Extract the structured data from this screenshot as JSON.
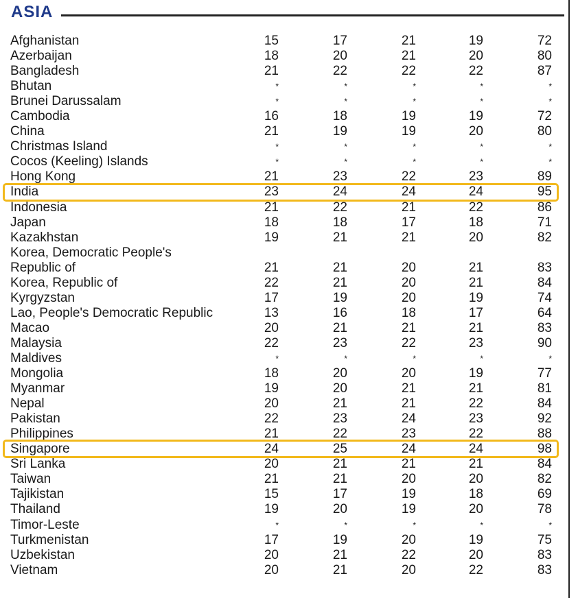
{
  "section_title": "ASIA",
  "highlight_color": "#f2b91c",
  "title_color": "#1f3a8a",
  "rows": [
    {
      "name": "Afghanistan",
      "v1": "15",
      "v2": "17",
      "v3": "21",
      "v4": "19",
      "v5": "72"
    },
    {
      "name": "Azerbaijan",
      "v1": "18",
      "v2": "20",
      "v3": "21",
      "v4": "20",
      "v5": "80"
    },
    {
      "name": "Bangladesh",
      "v1": "21",
      "v2": "22",
      "v3": "22",
      "v4": "22",
      "v5": "87"
    },
    {
      "name": "Bhutan",
      "v1": "*",
      "v2": "*",
      "v3": "*",
      "v4": "*",
      "v5": "*"
    },
    {
      "name": "Brunei Darussalam",
      "v1": "*",
      "v2": "*",
      "v3": "*",
      "v4": "*",
      "v5": "*"
    },
    {
      "name": "Cambodia",
      "v1": "16",
      "v2": "18",
      "v3": "19",
      "v4": "19",
      "v5": "72"
    },
    {
      "name": "China",
      "v1": "21",
      "v2": "19",
      "v3": "19",
      "v4": "20",
      "v5": "80"
    },
    {
      "name": "Christmas Island",
      "v1": "*",
      "v2": "*",
      "v3": "*",
      "v4": "*",
      "v5": "*"
    },
    {
      "name": "Cocos (Keeling) Islands",
      "v1": "*",
      "v2": "*",
      "v3": "*",
      "v4": "*",
      "v5": "*"
    },
    {
      "name": "Hong Kong",
      "v1": "21",
      "v2": "23",
      "v3": "22",
      "v4": "23",
      "v5": "89"
    },
    {
      "name": "India",
      "v1": "23",
      "v2": "24",
      "v3": "24",
      "v4": "24",
      "v5": "95"
    },
    {
      "name": "Indonesia",
      "v1": "21",
      "v2": "22",
      "v3": "21",
      "v4": "22",
      "v5": "86"
    },
    {
      "name": "Japan",
      "v1": "18",
      "v2": "18",
      "v3": "17",
      "v4": "18",
      "v5": "71"
    },
    {
      "name": "Kazakhstan",
      "v1": "19",
      "v2": "21",
      "v3": "21",
      "v4": "20",
      "v5": "82"
    },
    {
      "name": "Korea, Democratic People's",
      "v1": "",
      "v2": "",
      "v3": "",
      "v4": "",
      "v5": ""
    },
    {
      "name": "Republic of",
      "v1": "21",
      "v2": "21",
      "v3": "20",
      "v4": "21",
      "v5": "83"
    },
    {
      "name": "Korea, Republic of",
      "v1": "22",
      "v2": "21",
      "v3": "20",
      "v4": "21",
      "v5": "84"
    },
    {
      "name": "Kyrgyzstan",
      "v1": "17",
      "v2": "19",
      "v3": "20",
      "v4": "19",
      "v5": "74"
    },
    {
      "name": "Lao, People's Democratic Republic",
      "v1": "13",
      "v2": "16",
      "v3": "18",
      "v4": "17",
      "v5": "64"
    },
    {
      "name": "Macao",
      "v1": "20",
      "v2": "21",
      "v3": "21",
      "v4": "21",
      "v5": "83"
    },
    {
      "name": "Malaysia",
      "v1": "22",
      "v2": "23",
      "v3": "22",
      "v4": "23",
      "v5": "90"
    },
    {
      "name": "Maldives",
      "v1": "*",
      "v2": "*",
      "v3": "*",
      "v4": "*",
      "v5": "*"
    },
    {
      "name": "Mongolia",
      "v1": "18",
      "v2": "20",
      "v3": "20",
      "v4": "19",
      "v5": "77"
    },
    {
      "name": "Myanmar",
      "v1": "19",
      "v2": "20",
      "v3": "21",
      "v4": "21",
      "v5": "81"
    },
    {
      "name": "Nepal",
      "v1": "20",
      "v2": "21",
      "v3": "21",
      "v4": "22",
      "v5": "84"
    },
    {
      "name": "Pakistan",
      "v1": "22",
      "v2": "23",
      "v3": "24",
      "v4": "23",
      "v5": "92"
    },
    {
      "name": "Philippines",
      "v1": "21",
      "v2": "22",
      "v3": "23",
      "v4": "22",
      "v5": "88"
    },
    {
      "name": "Singapore",
      "v1": "24",
      "v2": "25",
      "v3": "24",
      "v4": "24",
      "v5": "98"
    },
    {
      "name": "Sri Lanka",
      "v1": "20",
      "v2": "21",
      "v3": "21",
      "v4": "21",
      "v5": "84"
    },
    {
      "name": "Taiwan",
      "v1": "21",
      "v2": "21",
      "v3": "20",
      "v4": "20",
      "v5": "82"
    },
    {
      "name": "Tajikistan",
      "v1": "15",
      "v2": "17",
      "v3": "19",
      "v4": "18",
      "v5": "69"
    },
    {
      "name": "Thailand",
      "v1": "19",
      "v2": "20",
      "v3": "19",
      "v4": "20",
      "v5": "78"
    },
    {
      "name": "Timor-Leste",
      "v1": "*",
      "v2": "*",
      "v3": "*",
      "v4": "*",
      "v5": "*"
    },
    {
      "name": "Turkmenistan",
      "v1": "17",
      "v2": "19",
      "v3": "20",
      "v4": "19",
      "v5": "75"
    },
    {
      "name": "Uzbekistan",
      "v1": "20",
      "v2": "21",
      "v3": "22",
      "v4": "20",
      "v5": "83"
    },
    {
      "name": "Vietnam",
      "v1": "20",
      "v2": "21",
      "v3": "20",
      "v4": "22",
      "v5": "83"
    }
  ],
  "highlighted_rows": [
    "India",
    "Singapore"
  ]
}
